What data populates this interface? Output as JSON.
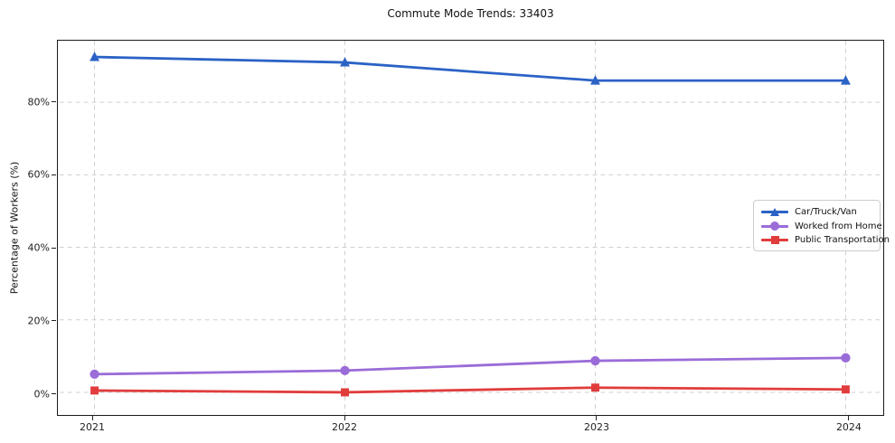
{
  "figure": {
    "background": "#ffffff",
    "grid_color": "#cfcfcf",
    "spine_color": "#1a1a1a"
  },
  "chart_data": {
    "type": "line",
    "title": "Commute Mode Trends: 33403",
    "xlabel": "",
    "ylabel": "Percentage of Workers (%)",
    "x": [
      2021,
      2022,
      2023,
      2024
    ],
    "x_tick_labels": [
      "2021",
      "2022",
      "2023",
      "2024"
    ],
    "y_ticks": [
      0,
      20,
      40,
      60,
      80
    ],
    "y_tick_labels": [
      "0%",
      "20%",
      "40%",
      "60%",
      "80%"
    ],
    "xlim": [
      2020.86,
      2024.14
    ],
    "ylim": [
      -6,
      97
    ],
    "grid": true,
    "legend_position": "center-right",
    "series": [
      {
        "name": "Car/Truck/Van",
        "marker": "triangle",
        "color": "#2b62c6",
        "values": [
          92.5,
          91,
          86,
          86
        ]
      },
      {
        "name": "Worked from Home",
        "marker": "circle",
        "color": "#9a6cd8",
        "values": [
          5,
          6,
          8.7,
          9.5
        ]
      },
      {
        "name": "Public Transportation",
        "marker": "square",
        "color": "#e13c3c",
        "values": [
          0.5,
          0,
          1.3,
          0.8
        ]
      }
    ]
  }
}
